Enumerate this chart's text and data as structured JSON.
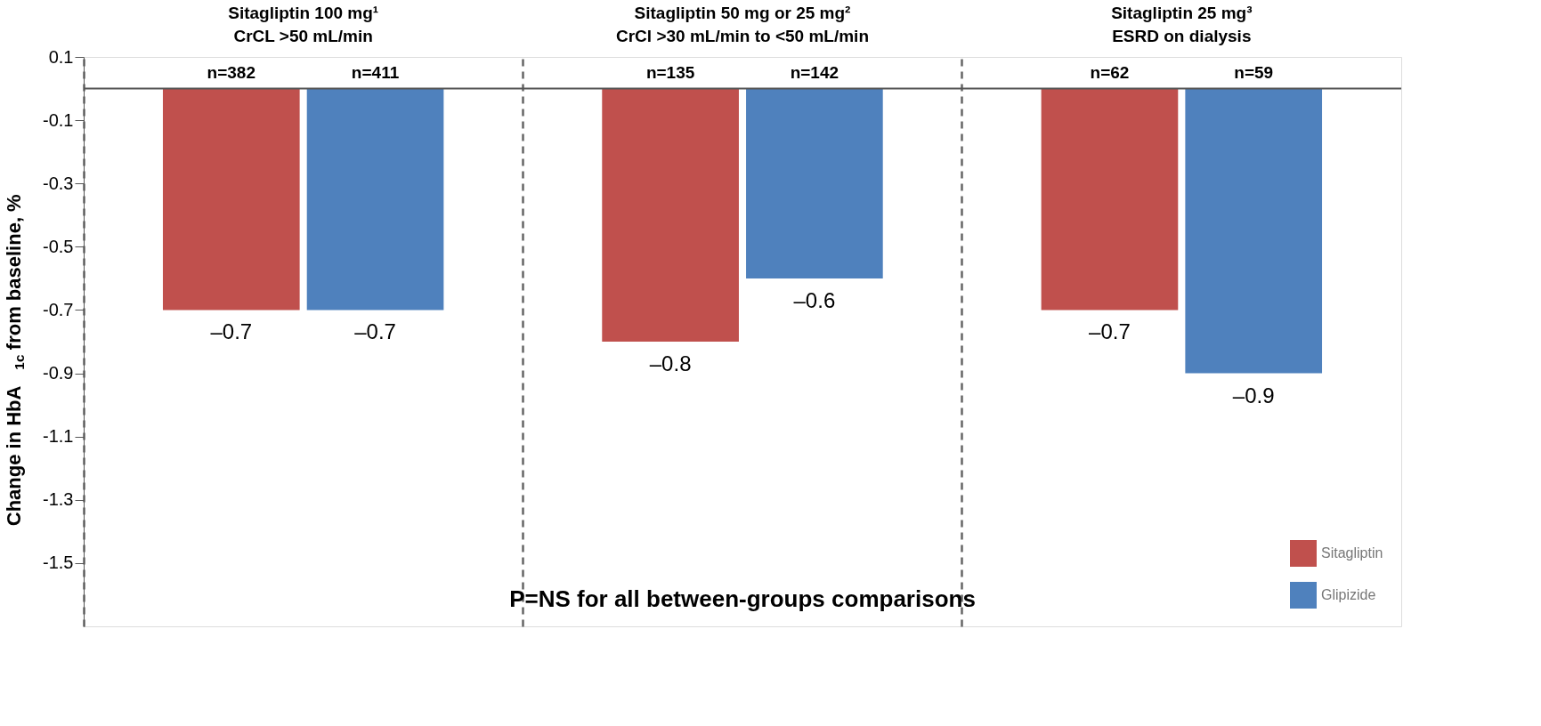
{
  "chart_data": {
    "type": "bar",
    "categories": [
      "Sitagliptin 100 mg¹\nCrCL >50 mL/min",
      "Sitagliptin 50 mg or 25 mg²\nCrCl >30 mL/min to <50 mL/min",
      "Sitagliptin 25 mg³\nESRD on dialysis"
    ],
    "series": [
      {
        "name": "Sitagliptin",
        "color": "#c0504d",
        "values": [
          -0.7,
          -0.8,
          -0.7
        ]
      },
      {
        "name": "Glipizide",
        "color": "#4f81bd",
        "values": [
          -0.7,
          -0.6,
          -0.9
        ]
      }
    ],
    "ylabel": "Change in HbA$_{1c}$ from baseline, %",
    "ylim": [
      -1.7,
      0.1
    ],
    "yticks": [
      0.1,
      -0.1,
      -0.3,
      -0.5,
      -0.7,
      -0.9,
      -1.1,
      -1.3,
      -1.5
    ],
    "value_labels": [
      [
        "–0.7",
        "–0.8",
        "–0.7"
      ],
      [
        "–0.7",
        "–0.6",
        "–0.9"
      ]
    ],
    "grid": "x",
    "legend": "bottom right",
    "ref_lines": [
      {
        "axis": "y",
        "value": 0,
        "color": "#555555"
      }
    ],
    "annotations": [
      "n=382",
      "n=411",
      "n=135",
      "n=142",
      "n=62",
      "n=59",
      "P=NS for all between-groups comparisons"
    ]
  }
}
